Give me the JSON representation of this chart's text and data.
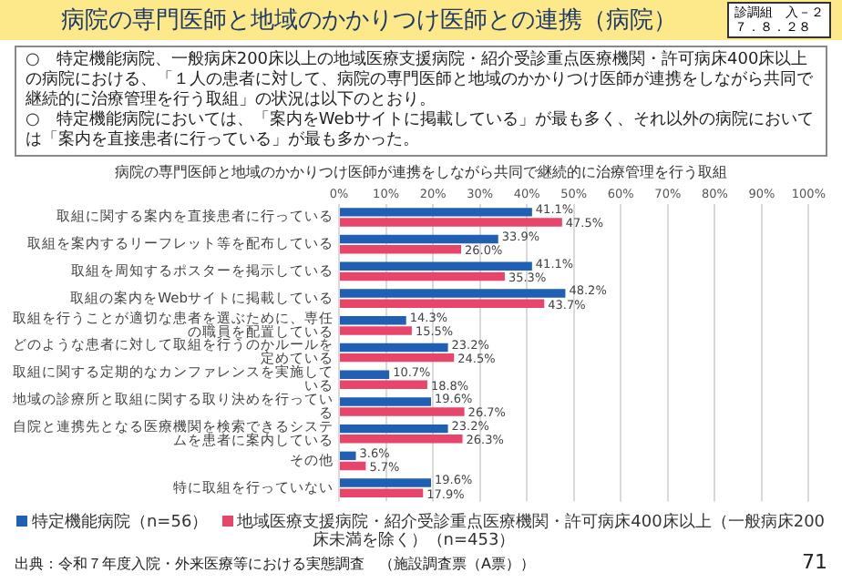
{
  "chart_data": {
    "type": "bar",
    "orientation": "horizontal",
    "title": "病院の専門医師と地域のかかりつけ医師との連携（病院）",
    "subtitle": "病院の専門医師と地域のかかりつけ医師が連携をしながら共同で継続的に治療管理を行う取組",
    "annotations": [
      "診調組　入－２",
      "７．８．２８",
      "○　特定機能病院、一般病床200床以上の地域医療支援病院・紹介受診重点医療機関・許可病床400床以上の病院における、「１人の患者に対して、病院の専門医師と地域のかかりつけ医師が連携をしながら共同で継続的に治療管理を行う取組」の状況は以下のとおり。",
      "○　特定機能病院においては、「案内をWebサイトに掲載している」が最も多く、それ以外の病院においては「案内を直接患者に行っている」が最も多かった。",
      "出典：令和７年度入院・外来医療等における実態調査　（施設調査票（A票））",
      "71"
    ],
    "categories": [
      "取組に関する案内を直接患者に行っている",
      "取組を案内するリーフレット等を配布している",
      "取組を周知するポスターを掲示している",
      "取組の案内をWebサイトに掲載している",
      "取組を行うことが適切な患者を選ぶために、専任の職員を配置している",
      "どのような患者に対して取組を行うのかルールを定めている",
      "取組に関する定期的なカンファレンスを実施している",
      "地域の診療所と取組に関する取り決めを行っている",
      "自院と連携先となる医療機関を検索できるシステムを患者に案内している",
      "その他",
      "特に取組を行っていない"
    ],
    "series": [
      {
        "name": "特定機能病院（n=56）",
        "color": "#1f5fb4",
        "values": [
          41.1,
          33.9,
          41.1,
          48.2,
          14.3,
          23.2,
          10.7,
          19.6,
          23.2,
          3.6,
          19.6
        ],
        "value_labels": [
          "41.1%",
          "33.9%",
          "41.1%",
          "48.2%",
          "14.3%",
          "23.2%",
          "10.7%",
          "19.6%",
          "23.2%",
          "3.6%",
          "19.6%"
        ]
      },
      {
        "name": "地域医療支援病院・紹介受診重点医療機関・許可病床400床以上（一般病床200床未満を除く）（n=453）",
        "color": "#e8456b",
        "values": [
          47.5,
          26.0,
          35.3,
          43.7,
          15.5,
          24.5,
          18.8,
          26.7,
          26.3,
          5.7,
          17.9
        ],
        "value_labels": [
          "47.5%",
          "26.0%",
          "35.3%",
          "43.7%",
          "15.5%",
          "24.5%",
          "18.8%",
          "26.7%",
          "26.3%",
          "5.7%",
          "17.9%"
        ]
      }
    ],
    "xlim": [
      0,
      100
    ],
    "xticks": [
      {
        "value": 0,
        "label": "0%"
      },
      {
        "value": 10,
        "label": "10%"
      },
      {
        "value": 20,
        "label": "20%"
      },
      {
        "value": 30,
        "label": "30%"
      },
      {
        "value": 40,
        "label": "40%"
      },
      {
        "value": 50,
        "label": "50%"
      },
      {
        "value": 60,
        "label": "60%"
      },
      {
        "value": 70,
        "label": "70%"
      },
      {
        "value": 80,
        "label": "80%"
      },
      {
        "value": 90,
        "label": "90%"
      },
      {
        "value": 100,
        "label": "100%"
      }
    ],
    "grid": "x",
    "legend": "bottom"
  }
}
